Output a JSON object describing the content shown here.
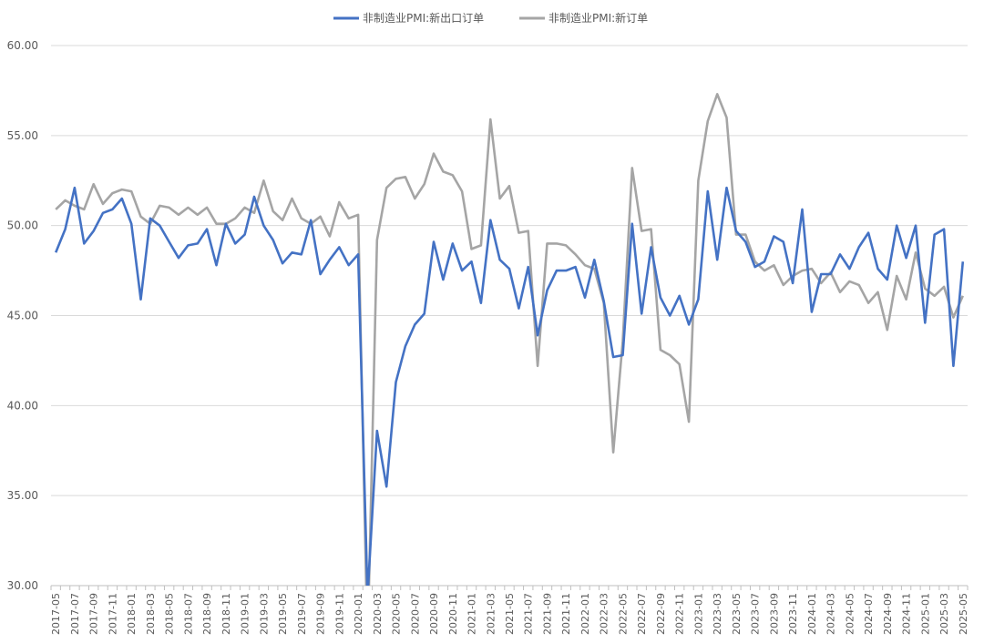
{
  "chart_data": {
    "type": "line",
    "title": "",
    "xlabel": "",
    "ylabel": "",
    "ylim": [
      30,
      60
    ],
    "yticks": [
      "30.00",
      "35.00",
      "40.00",
      "45.00",
      "50.00",
      "55.00",
      "60.00"
    ],
    "grid": "horizontal",
    "legend_position": "top-center",
    "x": [
      "2017-05",
      "2017-06",
      "2017-07",
      "2017-08",
      "2017-09",
      "2017-10",
      "2017-11",
      "2017-12",
      "2018-01",
      "2018-02",
      "2018-03",
      "2018-04",
      "2018-05",
      "2018-06",
      "2018-07",
      "2018-08",
      "2018-09",
      "2018-10",
      "2018-11",
      "2018-12",
      "2019-01",
      "2019-02",
      "2019-03",
      "2019-04",
      "2019-05",
      "2019-06",
      "2019-07",
      "2019-08",
      "2019-09",
      "2019-10",
      "2019-11",
      "2019-12",
      "2020-01",
      "2020-02",
      "2020-03",
      "2020-04",
      "2020-05",
      "2020-06",
      "2020-07",
      "2020-08",
      "2020-09",
      "2020-10",
      "2020-11",
      "2020-12",
      "2021-01",
      "2021-02",
      "2021-03",
      "2021-04",
      "2021-05",
      "2021-06",
      "2021-07",
      "2021-08",
      "2021-09",
      "2021-10",
      "2021-11",
      "2021-12",
      "2022-01",
      "2022-02",
      "2022-03",
      "2022-04",
      "2022-05",
      "2022-06",
      "2022-07",
      "2022-08",
      "2022-09",
      "2022-10",
      "2022-11",
      "2022-12",
      "2023-01",
      "2023-02",
      "2023-03",
      "2023-04",
      "2023-05",
      "2023-06",
      "2023-07",
      "2023-08",
      "2023-09",
      "2023-10",
      "2023-11",
      "2023-12",
      "2024-01",
      "2024-02",
      "2024-03",
      "2024-04",
      "2024-05",
      "2024-06",
      "2024-07",
      "2024-08",
      "2024-09",
      "2024-10",
      "2024-11",
      "2024-12",
      "2025-01",
      "2025-02",
      "2025-03",
      "2025-04",
      "2025-05"
    ],
    "x_tick_labels": [
      "2017-05",
      "2017-07",
      "2017-09",
      "2017-11",
      "2018-01",
      "2018-03",
      "2018-05",
      "2018-07",
      "2018-09",
      "2018-11",
      "2019-01",
      "2019-03",
      "2019-05",
      "2019-07",
      "2019-09",
      "2019-11",
      "2020-01",
      "2020-03",
      "2020-05",
      "2020-07",
      "2020-09",
      "2020-11",
      "2021-01",
      "2021-03",
      "2021-05",
      "2021-07",
      "2021-09",
      "2021-11",
      "2022-01",
      "2022-03",
      "2022-05",
      "2022-07",
      "2022-09",
      "2022-11",
      "2023-01",
      "2023-03",
      "2023-05",
      "2023-07",
      "2023-09",
      "2023-11",
      "2024-01",
      "2024-03",
      "2024-05",
      "2024-07",
      "2024-09",
      "2024-11",
      "2025-01",
      "2025-03",
      "2025-05"
    ],
    "series": [
      {
        "name": "非制造业PMI:新出口订单",
        "color": "#4472C4",
        "values": [
          48.5,
          49.8,
          52.1,
          49.0,
          49.7,
          50.7,
          50.9,
          51.5,
          50.1,
          45.9,
          50.4,
          50.0,
          49.1,
          48.2,
          48.9,
          49.0,
          49.8,
          47.8,
          50.1,
          49.0,
          49.5,
          51.6,
          50.0,
          49.2,
          47.9,
          48.5,
          48.4,
          50.3,
          47.3,
          48.1,
          48.8,
          47.8,
          48.4,
          29.4,
          38.6,
          35.5,
          41.3,
          43.3,
          44.5,
          45.1,
          49.1,
          47.0,
          49.0,
          47.5,
          48.0,
          45.7,
          50.3,
          48.1,
          47.6,
          45.4,
          47.7,
          43.9,
          46.4,
          47.5,
          47.5,
          47.7,
          46.0,
          48.1,
          45.8,
          42.7,
          42.8,
          50.1,
          45.1,
          48.8,
          46.0,
          45.0,
          46.1,
          44.5,
          45.9,
          51.9,
          48.1,
          52.1,
          49.7,
          49.1,
          47.7,
          48.0,
          49.4,
          49.1,
          46.8,
          50.9,
          45.2,
          47.3,
          47.3,
          48.4,
          47.6,
          48.8,
          49.6,
          47.6,
          47.0,
          50.0,
          48.2,
          50.0,
          44.6,
          49.5,
          49.8,
          42.2,
          48.0
        ]
      },
      {
        "name": "非制造业PMI:新订单",
        "color": "#A5A5A5",
        "values": [
          50.9,
          51.4,
          51.1,
          50.9,
          52.3,
          51.2,
          51.8,
          52.0,
          51.9,
          50.5,
          50.1,
          51.1,
          51.0,
          50.6,
          51.0,
          50.6,
          51.0,
          50.1,
          50.1,
          50.4,
          51.0,
          50.7,
          52.5,
          50.8,
          50.3,
          51.5,
          50.4,
          50.1,
          50.5,
          49.4,
          51.3,
          50.4,
          50.6,
          26.5,
          49.2,
          52.1,
          52.6,
          52.7,
          51.5,
          52.3,
          54.0,
          53.0,
          52.8,
          51.9,
          48.7,
          48.9,
          55.9,
          51.5,
          52.2,
          49.6,
          49.7,
          42.2,
          49.0,
          49.0,
          48.9,
          48.4,
          47.8,
          47.6,
          45.7,
          37.4,
          43.6,
          53.2,
          49.7,
          49.8,
          43.1,
          42.8,
          42.3,
          39.1,
          52.5,
          55.8,
          57.3,
          56.0,
          49.5,
          49.5,
          48.0,
          47.5,
          47.8,
          46.7,
          47.2,
          47.5,
          47.6,
          46.8,
          47.4,
          46.3,
          46.9,
          46.7,
          45.7,
          46.3,
          44.2,
          47.2,
          45.9,
          48.5,
          46.5,
          46.1,
          46.6,
          44.9,
          46.1
        ]
      }
    ]
  }
}
